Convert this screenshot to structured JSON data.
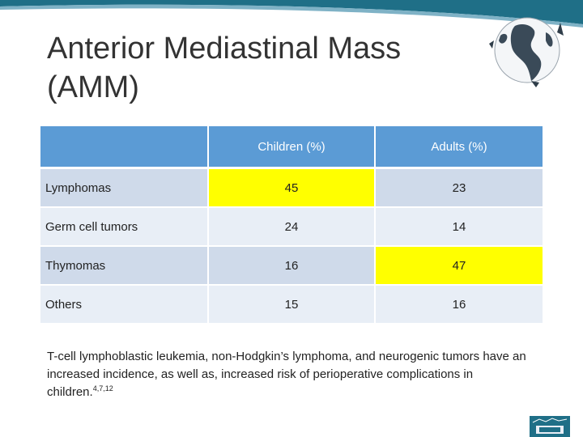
{
  "slide": {
    "title_line1": "Anterior Mediastinal Mass",
    "title_line2": "(AMM)"
  },
  "table": {
    "headers": [
      "",
      "Children (%)",
      "Adults (%)"
    ],
    "rows": [
      {
        "label": "Lymphomas",
        "children": "45",
        "adults": "23"
      },
      {
        "label": "Germ cell tumors",
        "children": "24",
        "adults": "14"
      },
      {
        "label": "Thymomas",
        "children": "16",
        "adults": "47"
      },
      {
        "label": "Others",
        "children": "15",
        "adults": "16"
      }
    ]
  },
  "note": {
    "text": "T-cell lymphoblastic leukemia, non-Hodgkin’s lymphoma, and neurogenic tumors have an increased incidence, as well as, increased risk of perioperative complications in children.",
    "refs": "4,7,12"
  },
  "colors": {
    "header_band": "#1f6f87",
    "table_header": "#5b9bd5",
    "row_odd": "#cfdaea",
    "row_even": "#e8eef6",
    "highlight": "#ffff00"
  },
  "icons": [
    "globe-icon",
    "logo-icon"
  ]
}
